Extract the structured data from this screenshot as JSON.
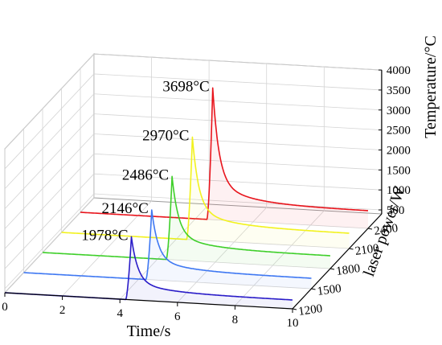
{
  "chart_data": {
    "type": "line",
    "projection": "3d-waterfall",
    "xlabel": "Time/s",
    "ylabel": "laser power/W",
    "zlabel": "Temperature/°C",
    "xlim": [
      0,
      10
    ],
    "x_ticks": [
      "0",
      "2",
      "4",
      "6",
      "8",
      "10"
    ],
    "y_ticks": [
      "1200",
      "1500",
      "1800",
      "2100",
      "2400"
    ],
    "zlim": [
      400,
      4000
    ],
    "z_ticks": [
      "500",
      "1000",
      "1500",
      "2000",
      "2500",
      "3000",
      "3500",
      "4000"
    ],
    "grid": true,
    "baseline_temperature": 400,
    "series": [
      {
        "power": 1200,
        "color": "#2a1cc8",
        "onset_time": 4.2,
        "peak_time": 4.4,
        "peak_value": 1978,
        "annotation": "1978°C",
        "tail_end_value": 620
      },
      {
        "power": 1500,
        "color": "#3f78f2",
        "onset_time": 4.25,
        "peak_time": 4.45,
        "peak_value": 2146,
        "annotation": "2146°C",
        "tail_end_value": 660
      },
      {
        "power": 1800,
        "color": "#3fcf2a",
        "onset_time": 4.3,
        "peak_time": 4.5,
        "peak_value": 2486,
        "annotation": "2486°C",
        "tail_end_value": 720
      },
      {
        "power": 2100,
        "color": "#f2f21e",
        "onset_time": 4.35,
        "peak_time": 4.55,
        "peak_value": 2970,
        "annotation": "2970°C",
        "tail_end_value": 780
      },
      {
        "power": 2400,
        "color": "#e8141c",
        "onset_time": 4.4,
        "peak_time": 4.6,
        "peak_value": 3698,
        "annotation": "3698°C",
        "tail_end_value": 840
      }
    ]
  }
}
